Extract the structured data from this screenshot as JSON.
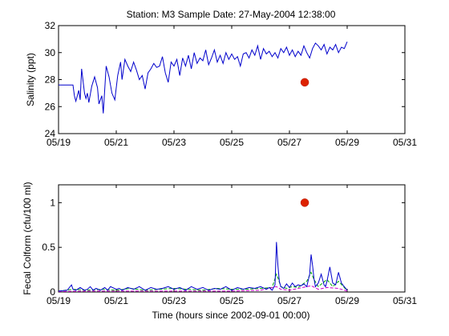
{
  "figure": {
    "title": "Station: M3  Sample Date: 27-May-2004 12:38:00",
    "xlabel": "Time (hours since 2002-09-01 00:00)"
  },
  "chart_data": [
    {
      "type": "line",
      "ylabel": "Salinity (ppt)",
      "xlim": [
        "05/19",
        "05/31"
      ],
      "ylim": [
        24,
        32
      ],
      "xticks": [
        "05/19",
        "05/21",
        "05/23",
        "05/25",
        "05/27",
        "05/29",
        "05/31"
      ],
      "yticks": [
        "24",
        "26",
        "28",
        "30",
        "32"
      ],
      "grid": false,
      "series": [
        {
          "color": "#0000cc",
          "x": [
            19.0,
            19.5,
            19.55,
            19.6,
            19.7,
            19.75,
            19.8,
            19.9,
            19.95,
            20.0,
            20.05,
            20.15,
            20.25,
            20.35,
            20.4,
            20.5,
            20.55,
            20.65,
            20.75,
            20.85,
            20.95,
            21.05,
            21.15,
            21.2,
            21.3,
            21.4,
            21.5,
            21.6,
            21.7,
            21.8,
            21.9,
            22.0,
            22.1,
            22.2,
            22.3,
            22.4,
            22.5,
            22.6,
            22.7,
            22.8,
            22.9,
            23.0,
            23.1,
            23.2,
            23.3,
            23.4,
            23.5,
            23.6,
            23.7,
            23.8,
            23.9,
            24.0,
            24.1,
            24.2,
            24.3,
            24.4,
            24.5,
            24.6,
            24.7,
            24.8,
            24.9,
            25.0,
            25.1,
            25.2,
            25.3,
            25.4,
            25.5,
            25.6,
            25.7,
            25.8,
            25.9,
            26.0,
            26.1,
            26.2,
            26.3,
            26.4,
            26.5,
            26.6,
            26.7,
            26.8,
            26.9,
            27.0,
            27.1,
            27.2,
            27.3,
            27.4,
            27.5,
            27.6,
            27.7,
            27.8,
            27.9,
            28.0,
            28.1,
            28.2,
            28.3,
            28.4,
            28.5,
            28.6,
            28.7,
            28.8,
            28.9,
            29.0
          ],
          "values": [
            27.6,
            27.6,
            26.8,
            26.4,
            27.2,
            26.5,
            28.8,
            27.0,
            26.6,
            27.0,
            26.3,
            27.5,
            28.2,
            27.4,
            26.2,
            26.8,
            25.5,
            29.0,
            28.2,
            27.0,
            26.5,
            28.3,
            29.3,
            28.0,
            29.5,
            29.0,
            28.6,
            29.3,
            28.7,
            28.0,
            28.3,
            27.3,
            28.5,
            28.8,
            29.2,
            28.9,
            29.0,
            29.7,
            28.5,
            27.8,
            29.3,
            29.0,
            29.5,
            28.3,
            29.6,
            29.0,
            29.8,
            28.8,
            30.0,
            29.2,
            29.6,
            29.4,
            30.2,
            29.1,
            29.6,
            30.2,
            29.3,
            29.8,
            29.2,
            30.0,
            29.5,
            29.9,
            29.5,
            29.7,
            29.0,
            29.9,
            30.0,
            29.6,
            30.2,
            29.8,
            30.5,
            29.5,
            30.3,
            29.9,
            30.1,
            29.7,
            30.0,
            29.6,
            30.3,
            30.0,
            30.4,
            29.8,
            30.2,
            29.7,
            30.1,
            29.8,
            30.5,
            30.0,
            29.6,
            30.3,
            30.7,
            30.5,
            30.2,
            30.6,
            29.9,
            30.4,
            30.2,
            30.6,
            30.0,
            30.4,
            30.3,
            30.8
          ]
        }
      ],
      "sample_point": {
        "x": 27.53,
        "y": 27.8,
        "color": "#dd2200"
      }
    },
    {
      "type": "line",
      "ylabel": "Fecal Colform (cfu/100 ml)",
      "xlim": [
        "05/19",
        "05/31"
      ],
      "ylim": [
        0,
        1.2
      ],
      "xticks": [
        "05/19",
        "05/21",
        "05/23",
        "05/25",
        "05/27",
        "05/29",
        "05/31"
      ],
      "yticks": [
        "0",
        "0.5",
        "1"
      ],
      "grid": false,
      "series": [
        {
          "color": "#0000cc",
          "x": [
            19.0,
            19.3,
            19.45,
            19.5,
            19.6,
            19.75,
            19.9,
            20.0,
            20.1,
            20.2,
            20.3,
            20.45,
            20.6,
            20.7,
            20.8,
            21.0,
            21.1,
            21.2,
            21.4,
            21.6,
            21.8,
            22.0,
            22.2,
            22.4,
            22.6,
            22.8,
            23.0,
            23.2,
            23.4,
            23.6,
            23.8,
            24.0,
            24.2,
            24.4,
            24.6,
            24.8,
            25.0,
            25.2,
            25.4,
            25.6,
            25.8,
            26.0,
            26.2,
            26.3,
            26.4,
            26.5,
            26.55,
            26.6,
            26.65,
            26.7,
            26.8,
            26.9,
            27.0,
            27.1,
            27.2,
            27.3,
            27.4,
            27.5,
            27.6,
            27.7,
            27.75,
            27.8,
            27.85,
            27.9,
            28.0,
            28.1,
            28.2,
            28.25,
            28.3,
            28.4,
            28.5,
            28.6,
            28.7,
            28.8,
            28.9,
            29.0
          ],
          "values": [
            0.01,
            0.02,
            0.08,
            0.03,
            0.02,
            0.05,
            0.02,
            0.03,
            0.06,
            0.02,
            0.04,
            0.02,
            0.05,
            0.02,
            0.06,
            0.03,
            0.04,
            0.02,
            0.05,
            0.03,
            0.06,
            0.02,
            0.05,
            0.03,
            0.04,
            0.06,
            0.03,
            0.05,
            0.02,
            0.06,
            0.03,
            0.05,
            0.02,
            0.04,
            0.03,
            0.06,
            0.02,
            0.05,
            0.03,
            0.05,
            0.04,
            0.06,
            0.03,
            0.05,
            0.02,
            0.08,
            0.56,
            0.3,
            0.12,
            0.06,
            0.04,
            0.09,
            0.05,
            0.1,
            0.06,
            0.08,
            0.07,
            0.09,
            0.06,
            0.2,
            0.42,
            0.3,
            0.15,
            0.06,
            0.1,
            0.2,
            0.08,
            0.06,
            0.12,
            0.28,
            0.1,
            0.08,
            0.22,
            0.1,
            0.06,
            0.02
          ]
        },
        {
          "color": "#00aa00",
          "dash": true,
          "x": [
            19.0,
            19.5,
            20.0,
            20.5,
            21.0,
            21.5,
            22.0,
            22.5,
            23.0,
            23.5,
            24.0,
            24.5,
            25.0,
            25.5,
            26.0,
            26.4,
            26.55,
            26.6,
            26.7,
            26.9,
            27.1,
            27.3,
            27.6,
            27.75,
            27.85,
            28.0,
            28.3,
            28.5,
            28.7,
            28.9,
            29.0
          ],
          "values": [
            0.01,
            0.03,
            0.02,
            0.03,
            0.02,
            0.04,
            0.02,
            0.03,
            0.04,
            0.03,
            0.02,
            0.04,
            0.03,
            0.03,
            0.04,
            0.05,
            0.2,
            0.16,
            0.06,
            0.04,
            0.06,
            0.05,
            0.12,
            0.22,
            0.14,
            0.06,
            0.14,
            0.06,
            0.12,
            0.05,
            0.01
          ]
        },
        {
          "color": "#cc00cc",
          "dash": true,
          "x": [
            19.0,
            20.0,
            21.0,
            22.0,
            23.0,
            24.0,
            25.0,
            26.0,
            26.55,
            26.7,
            27.0,
            27.75,
            28.0,
            28.3,
            28.7,
            29.0
          ],
          "values": [
            0.005,
            0.01,
            0.01,
            0.01,
            0.01,
            0.01,
            0.01,
            0.02,
            0.06,
            0.03,
            0.02,
            0.07,
            0.03,
            0.05,
            0.04,
            0.01
          ]
        }
      ],
      "sample_point": {
        "x": 27.53,
        "y": 1.0,
        "color": "#dd2200"
      }
    }
  ]
}
